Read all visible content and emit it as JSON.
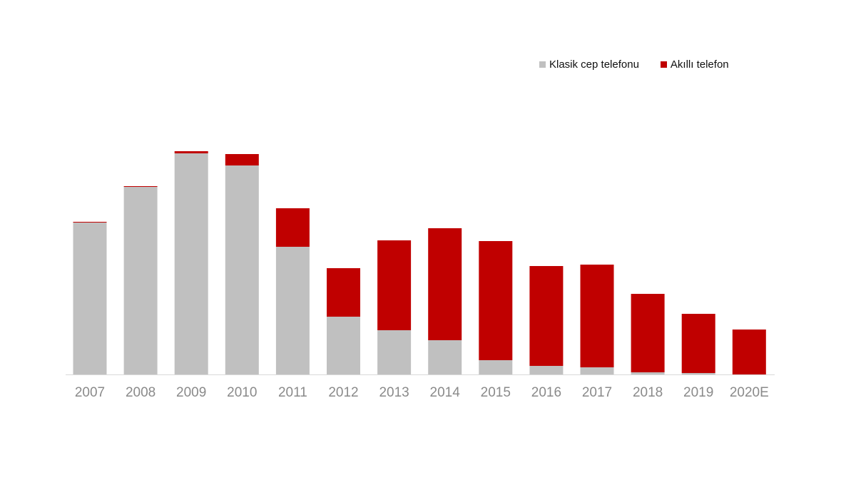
{
  "chart_data": {
    "type": "bar",
    "stacked": true,
    "title": "",
    "xlabel": "",
    "ylabel": "",
    "categories": [
      "2007",
      "2008",
      "2009",
      "2010",
      "2011",
      "2012",
      "2013",
      "2014",
      "2015",
      "2016",
      "2017",
      "2018",
      "2019",
      "2020E"
    ],
    "series": [
      {
        "name": "Klasik cep telefonu",
        "color": "#c0c0c0",
        "values": [
          213,
          263,
          310,
          293,
          179,
          81,
          62,
          48,
          20,
          12,
          10,
          3,
          2,
          0
        ]
      },
      {
        "name": "Akıllı telefon",
        "color": "#c00000",
        "values": [
          1,
          1,
          3,
          16,
          54,
          68,
          126,
          157,
          167,
          140,
          144,
          110,
          83,
          63
        ]
      }
    ],
    "ylim": [
      0,
      330
    ],
    "grid": false,
    "legend_position": "top-right"
  }
}
